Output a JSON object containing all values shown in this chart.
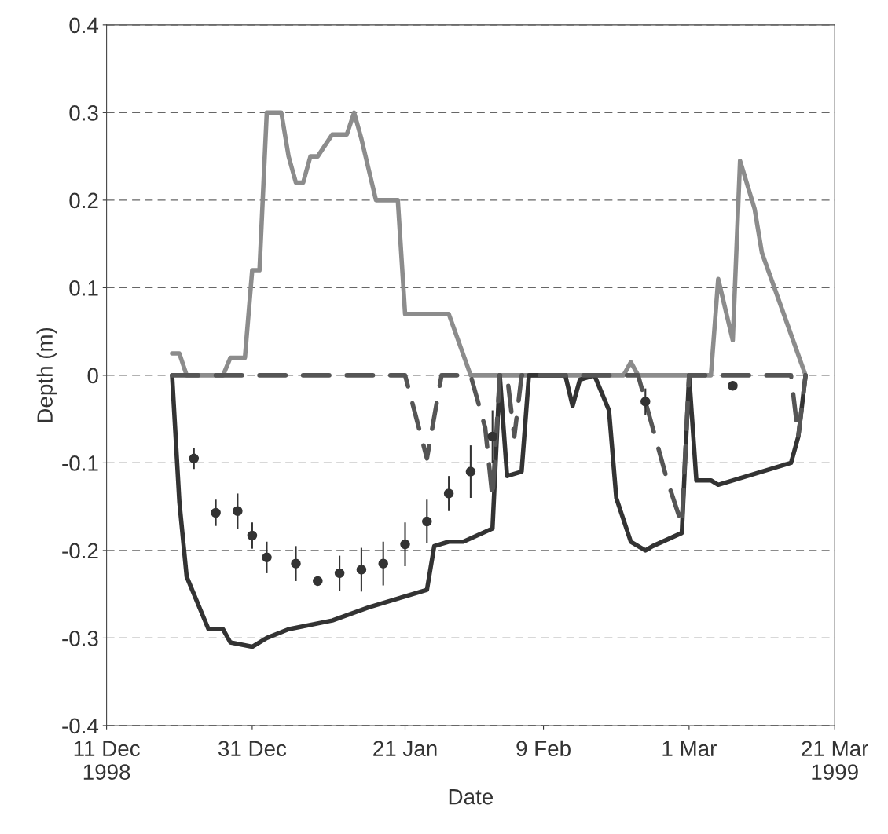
{
  "chart_data": {
    "type": "line",
    "xlabel": "Date",
    "ylabel": "Depth (m)",
    "xlim": [
      "1998-12-11",
      "1999-03-21"
    ],
    "xticks": [
      {
        "value": "1998-12-11",
        "label": "11 Dec\n1998"
      },
      {
        "value": "1998-12-31",
        "label": "31 Dec"
      },
      {
        "value": "1999-01-21",
        "label": "21 Jan"
      },
      {
        "value": "1999-02-09",
        "label": "9 Feb"
      },
      {
        "value": "1999-03-01",
        "label": "1 Mar"
      },
      {
        "value": "1999-03-21",
        "label": "21 Mar\n1999"
      }
    ],
    "ylim": [
      -0.4,
      0.4
    ],
    "yticks": [
      -0.4,
      -0.3,
      -0.2,
      -0.1,
      {
        "value": 0,
        "label": "0"
      },
      0.1,
      0.2,
      0.3,
      0.4
    ],
    "grid": "y",
    "series": [
      {
        "color": "#8c8c8c",
        "line_style": "solid",
        "x": [
          "1998-12-20",
          "1998-12-21",
          "1998-12-22",
          "1998-12-27",
          "1998-12-28",
          "1998-12-30",
          "1998-12-31",
          "1999-01-01",
          "1999-01-02",
          "1999-01-04",
          "1999-01-05",
          "1999-01-06",
          "1999-01-07",
          "1999-01-08",
          "1999-01-09",
          "1999-01-11",
          "1999-01-13",
          "1999-01-14",
          "1999-01-15",
          "1999-01-17",
          "1999-01-20",
          "1999-01-21",
          "1999-01-27",
          "1999-01-30",
          "1999-02-20",
          "1999-02-21",
          "1999-02-22",
          "1999-03-04",
          "1999-03-05",
          "1999-03-07",
          "1999-03-08",
          "1999-03-10",
          "1999-03-11",
          "1999-03-17"
        ],
        "values": [
          0.025,
          0.025,
          0,
          0,
          0.02,
          0.02,
          0.12,
          0.12,
          0.3,
          0.3,
          0.25,
          0.22,
          0.22,
          0.25,
          0.25,
          0.275,
          0.275,
          0.3,
          0.27,
          0.2,
          0.2,
          0.07,
          0.07,
          0,
          0,
          0.015,
          0,
          0,
          0.11,
          0.04,
          0.245,
          0.19,
          0.14,
          0
        ]
      },
      {
        "color": "#333333",
        "line_style": "solid",
        "x": [
          "1998-12-20",
          "1998-12-21",
          "1998-12-22",
          "1998-12-24",
          "1998-12-25",
          "1998-12-27",
          "1998-12-28",
          "1998-12-31",
          "1999-01-02",
          "1999-01-05",
          "1999-01-11",
          "1999-01-16",
          "1999-01-24",
          "1999-01-25",
          "1999-01-27",
          "1999-01-29",
          "1999-02-02",
          "1999-02-03",
          "1999-02-04",
          "1999-02-06",
          "1999-02-07",
          "1999-02-12",
          "1999-02-13",
          "1999-02-14",
          "1999-02-16",
          "1999-02-18",
          "1999-02-19",
          "1999-02-21",
          "1999-02-23",
          "1999-02-24",
          "1999-02-28",
          "1999-03-01",
          "1999-03-02",
          "1999-03-04",
          "1999-03-05",
          "1999-03-15",
          "1999-03-16",
          "1999-03-17"
        ],
        "values": [
          0,
          -0.145,
          -0.23,
          -0.27,
          -0.29,
          -0.29,
          -0.305,
          -0.31,
          -0.3,
          -0.29,
          -0.28,
          -0.265,
          -0.245,
          -0.195,
          -0.19,
          -0.19,
          -0.175,
          0,
          -0.115,
          -0.11,
          0,
          0,
          -0.035,
          -0.005,
          0,
          -0.04,
          -0.14,
          -0.19,
          -0.2,
          -0.195,
          -0.18,
          0,
          -0.12,
          -0.12,
          -0.125,
          -0.1,
          -0.07,
          0
        ]
      },
      {
        "color": "#555555",
        "line_style": "dashed",
        "x": [
          "1998-12-20",
          "1999-01-21",
          "1999-01-24",
          "1999-01-26",
          "1999-01-30",
          "1999-02-01",
          "1999-02-02",
          "1999-02-03",
          "1999-02-04",
          "1999-02-05",
          "1999-02-06",
          "1999-02-22",
          "1999-02-26",
          "1999-02-28",
          "1999-03-01",
          "1999-03-15",
          "1999-03-16",
          "1999-03-17"
        ],
        "values": [
          0,
          0,
          -0.095,
          0,
          0,
          -0.06,
          -0.14,
          0,
          0,
          -0.07,
          0,
          0,
          -0.12,
          -0.17,
          0,
          0,
          -0.07,
          0
        ]
      },
      {
        "type": "scatter",
        "color": "#333333",
        "marker": "circle",
        "x": [
          "1998-12-23",
          "1998-12-26",
          "1998-12-29",
          "1998-12-31",
          "1999-01-02",
          "1999-01-06",
          "1999-01-09",
          "1999-01-12",
          "1999-01-15",
          "1999-01-18",
          "1999-01-21",
          "1999-01-24",
          "1999-01-27",
          "1999-01-30",
          "1999-02-02",
          "1999-02-23",
          "1999-03-07"
        ],
        "values": [
          -0.095,
          -0.157,
          -0.155,
          -0.183,
          -0.208,
          -0.215,
          -0.235,
          -0.226,
          -0.222,
          -0.215,
          -0.193,
          -0.167,
          -0.135,
          -0.11,
          -0.07,
          -0.03,
          -0.012
        ],
        "errors": [
          0.012,
          0.015,
          0.02,
          0.015,
          0.018,
          0.02,
          null,
          0.02,
          0.025,
          0.025,
          0.025,
          0.025,
          0.02,
          0.03,
          0.03,
          0.015,
          null
        ]
      }
    ]
  }
}
